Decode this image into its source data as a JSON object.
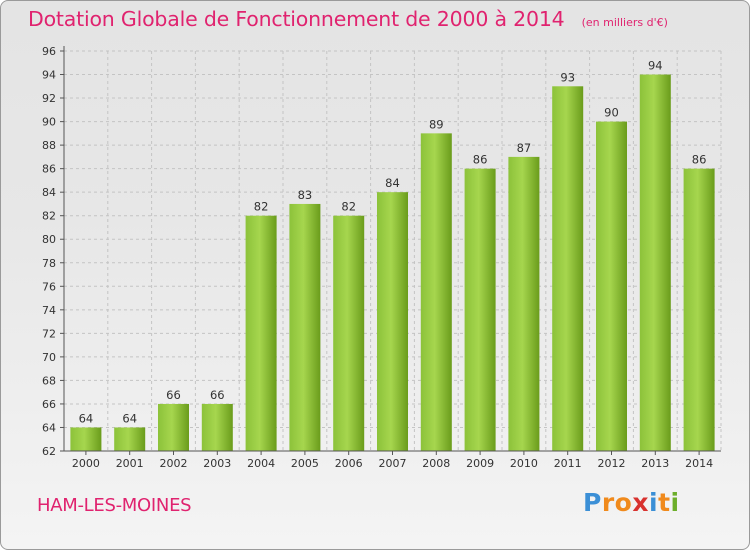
{
  "header": {
    "title": "Dotation Globale de Fonctionnement de 2000 à 2014",
    "subtitle": "(en milliers d'€)"
  },
  "commune": "HAM-LES-MOINES",
  "logo": {
    "text": "Proxiti",
    "letter_colors": [
      "#3b8fd6",
      "#f08a1c",
      "#f08a1c",
      "#d8322f",
      "#3b8fd6",
      "#f08a1c",
      "#6cae2a"
    ]
  },
  "colors": {
    "accent": "#e0236f",
    "bar_light": "#a6d64e",
    "bar_dark": "#6a9c1b"
  },
  "chart_data": {
    "type": "bar",
    "title": "Dotation Globale de Fonctionnement de 2000 à 2014",
    "subtitle": "(en milliers d'€)",
    "categories": [
      "2000",
      "2001",
      "2002",
      "2003",
      "2004",
      "2005",
      "2006",
      "2007",
      "2008",
      "2009",
      "2010",
      "2011",
      "2012",
      "2013",
      "2014"
    ],
    "values": [
      64,
      64,
      66,
      66,
      82,
      83,
      82,
      84,
      89,
      86,
      87,
      93,
      90,
      94,
      86
    ],
    "ylim": [
      62,
      96
    ],
    "yticks": [
      62,
      64,
      66,
      68,
      70,
      72,
      74,
      76,
      78,
      80,
      82,
      84,
      86,
      88,
      90,
      92,
      94,
      96
    ],
    "grid": true,
    "data_labels": true
  }
}
